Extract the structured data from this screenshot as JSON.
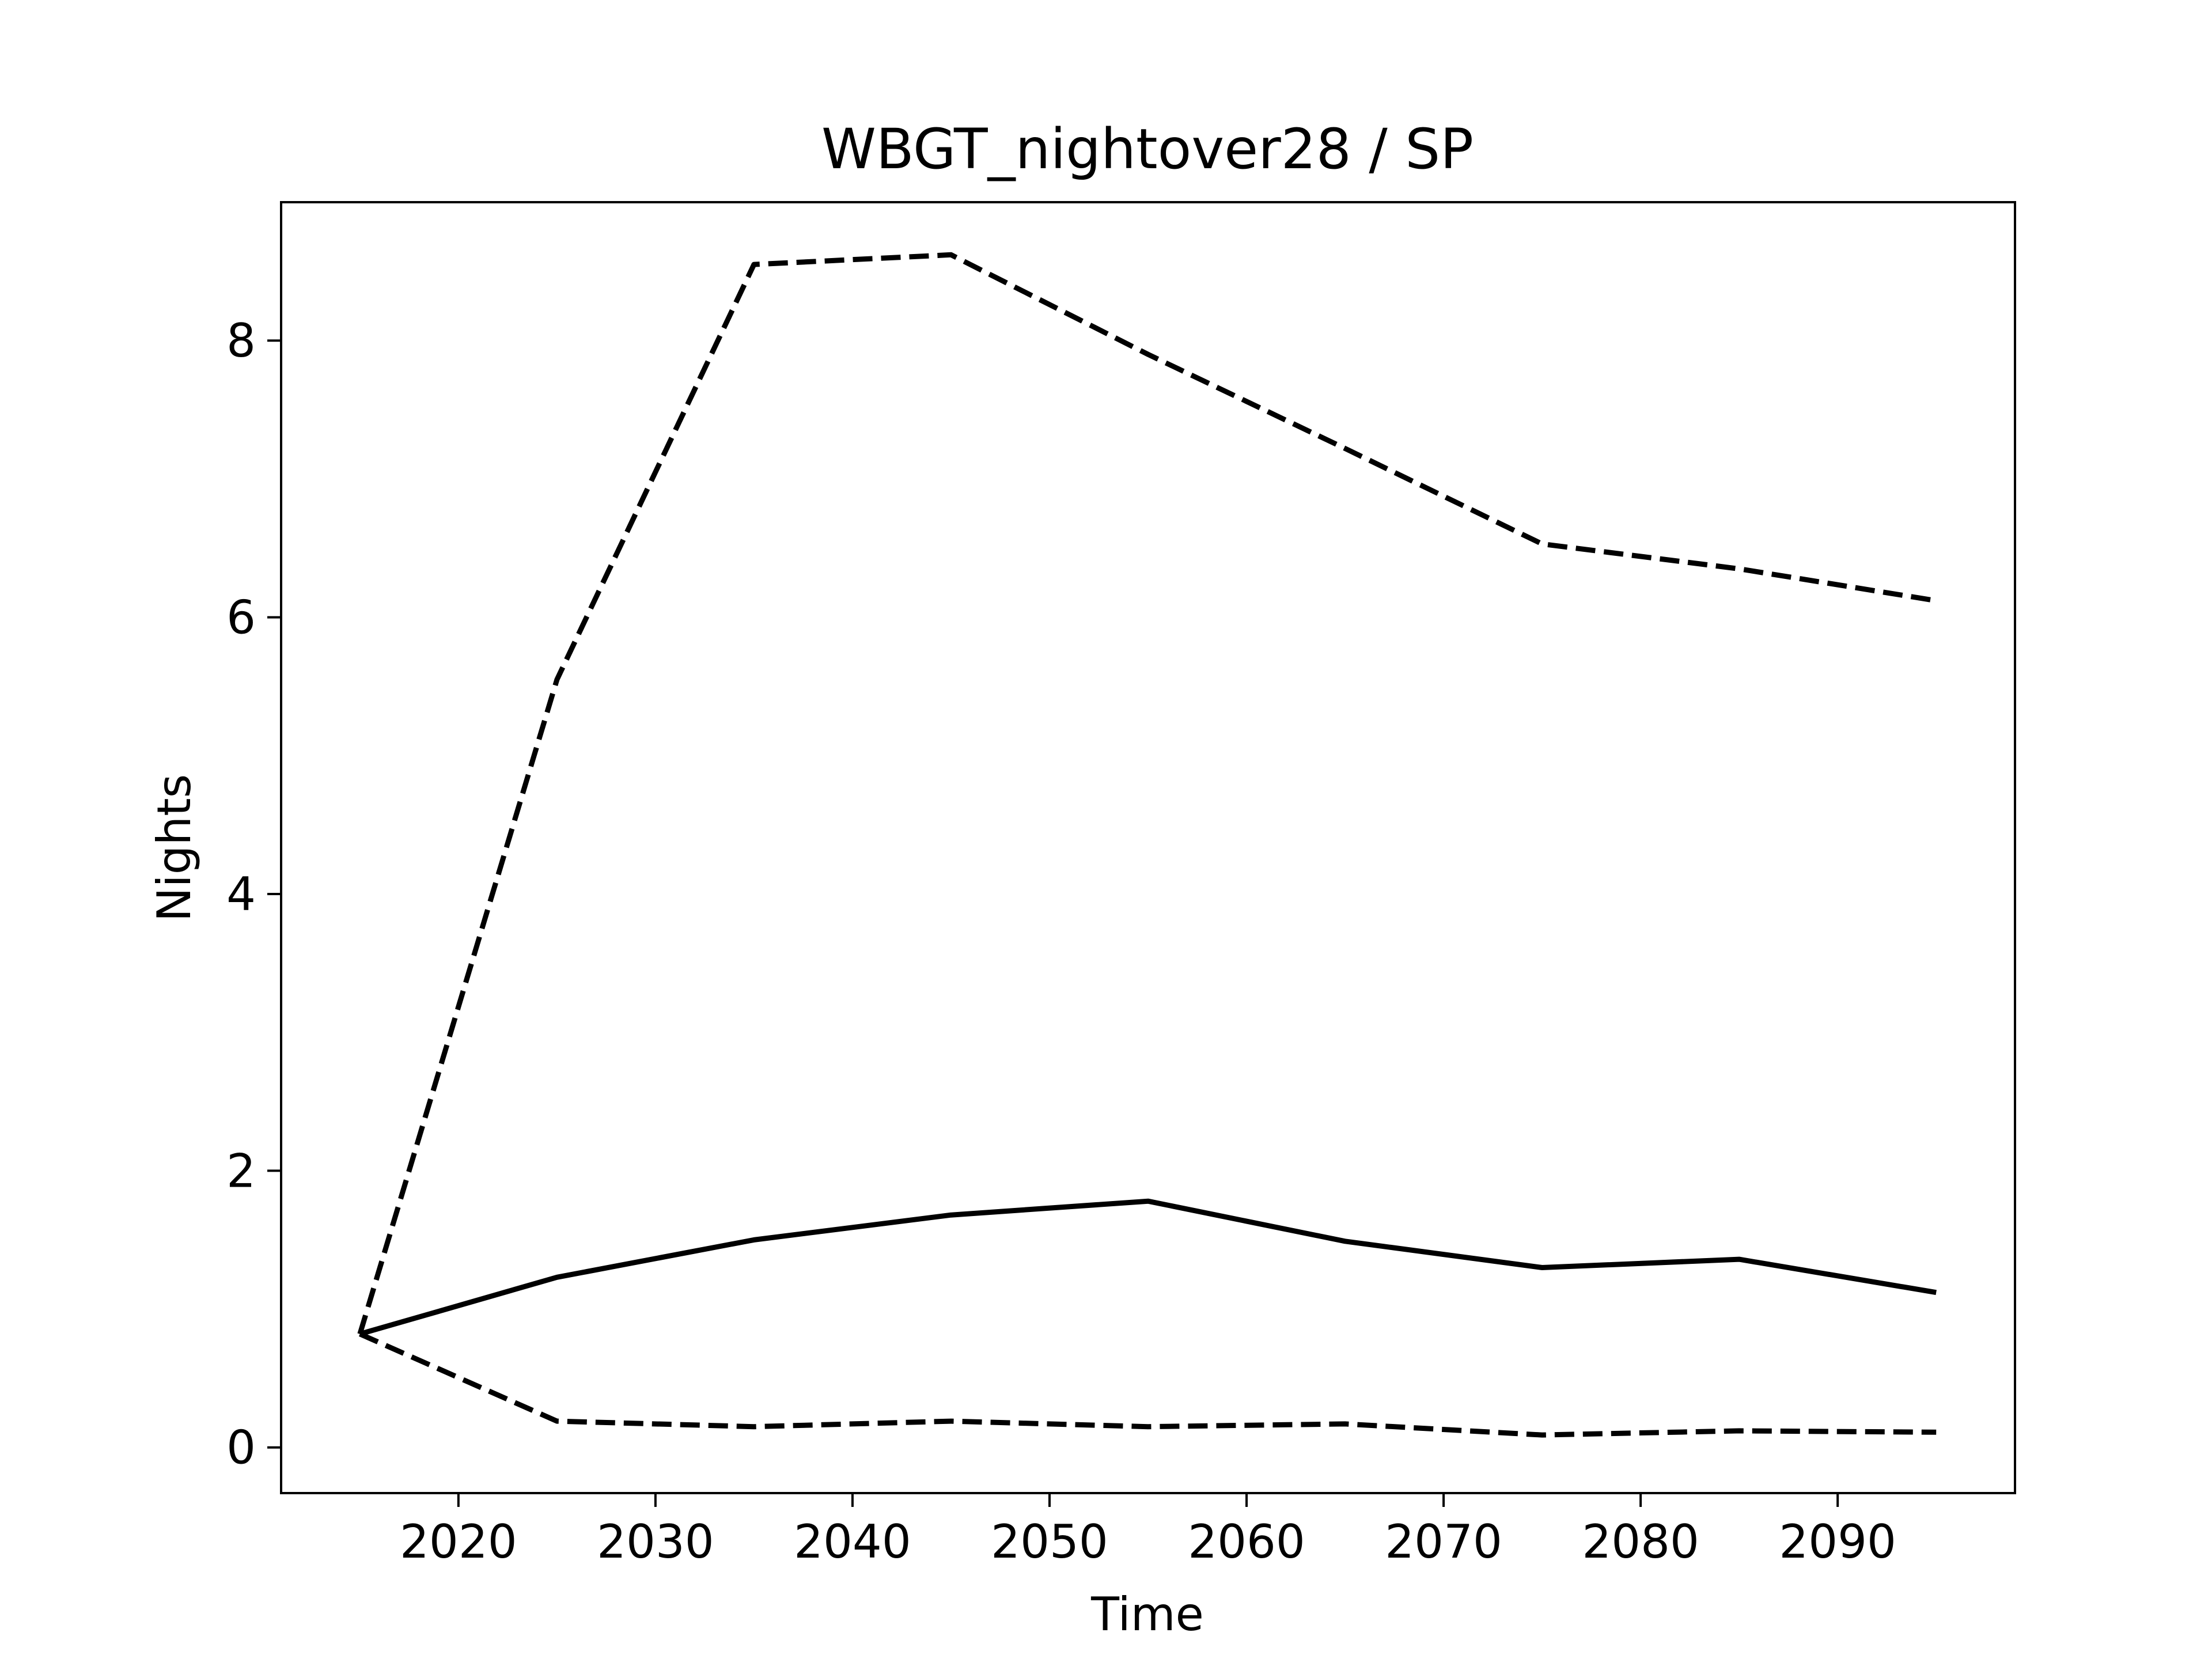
{
  "chart_data": {
    "type": "line",
    "title": "WBGT_nightover28 / SP",
    "xlabel": "Time",
    "ylabel": "Nights",
    "xlim": [
      2011,
      2099
    ],
    "ylim": [
      -0.33,
      9.0
    ],
    "xticks": [
      2020,
      2030,
      2040,
      2050,
      2060,
      2070,
      2080,
      2090
    ],
    "yticks": [
      0,
      2,
      4,
      6,
      8
    ],
    "xtick_labels": [
      "2020",
      "2030",
      "2040",
      "2050",
      "2060",
      "2070",
      "2080",
      "2090"
    ],
    "ytick_labels": [
      "0",
      "2",
      "4",
      "6",
      "8"
    ],
    "grid": false,
    "x": [
      2015,
      2025,
      2035,
      2045,
      2055,
      2065,
      2075,
      2085,
      2095
    ],
    "series": [
      {
        "style": "dashed",
        "color": "#000000",
        "values": [
          0.82,
          5.55,
          8.55,
          8.62,
          7.9,
          7.22,
          6.53,
          6.35,
          6.12
        ]
      },
      {
        "style": "solid",
        "color": "#000000",
        "values": [
          0.82,
          1.23,
          1.5,
          1.68,
          1.78,
          1.49,
          1.3,
          1.36,
          1.12
        ]
      },
      {
        "style": "dashed",
        "color": "#000000",
        "values": [
          0.82,
          0.19,
          0.15,
          0.19,
          0.15,
          0.17,
          0.09,
          0.12,
          0.11
        ]
      }
    ]
  }
}
